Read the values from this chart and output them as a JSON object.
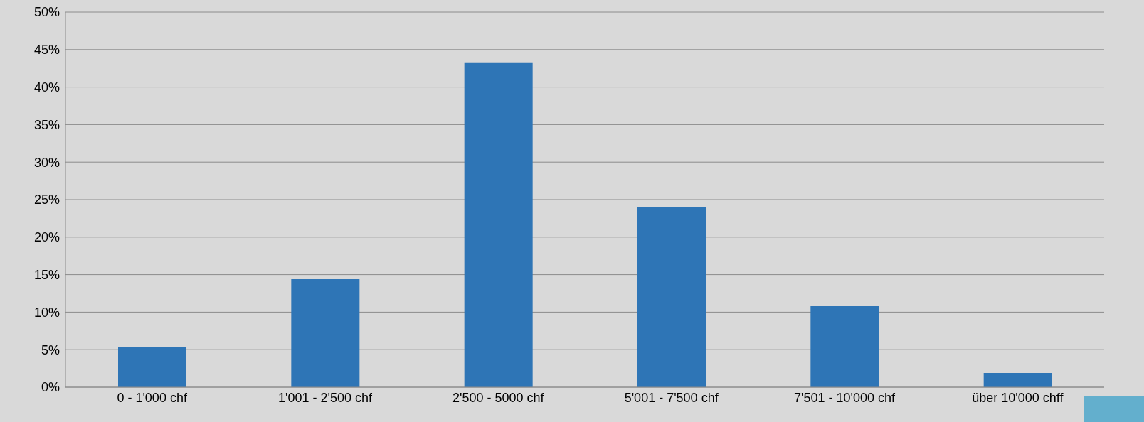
{
  "chart_data": {
    "type": "bar",
    "categories": [
      "0 - 1'000 chf",
      "1'001 - 2'500 chf",
      "2'500 - 5000 chf",
      "5'001 - 7'500 chf",
      "7'501 - 10'000 chf",
      "über 10'000 chff"
    ],
    "values": [
      5.4,
      14.4,
      43.3,
      24.0,
      10.8,
      1.9
    ],
    "color": "#2e75b6",
    "ylim": [
      0,
      50
    ],
    "yticks": [
      {
        "value": 0,
        "label": "0%"
      },
      {
        "value": 5,
        "label": "5%"
      },
      {
        "value": 10,
        "label": "10%"
      },
      {
        "value": 15,
        "label": "15%"
      },
      {
        "value": 20,
        "label": "20%"
      },
      {
        "value": 25,
        "label": "25%"
      },
      {
        "value": 30,
        "label": "30%"
      },
      {
        "value": 35,
        "label": "35%"
      },
      {
        "value": 40,
        "label": "40%"
      },
      {
        "value": 45,
        "label": "45%"
      },
      {
        "value": 50,
        "label": "50%"
      }
    ],
    "grid": "y",
    "legend": false
  }
}
